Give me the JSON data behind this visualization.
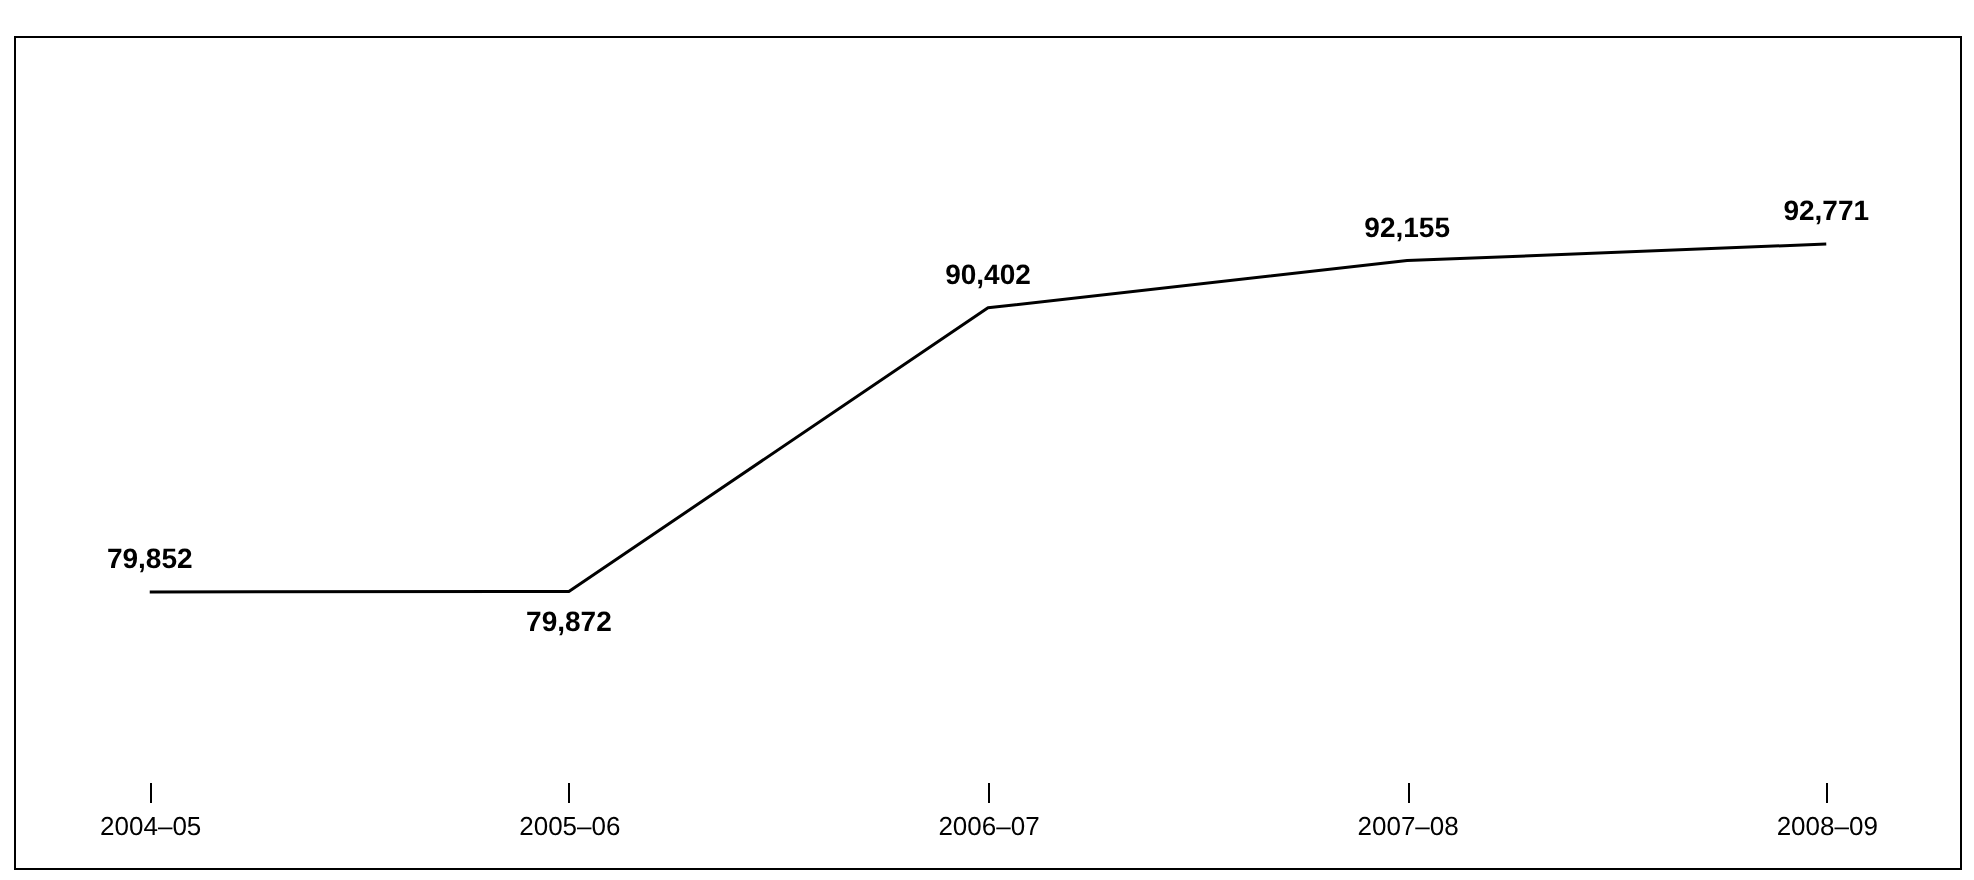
{
  "chart_data": {
    "type": "line",
    "categories": [
      "2004–05",
      "2005–06",
      "2006–07",
      "2007–08",
      "2008–09"
    ],
    "values": [
      79852,
      79872,
      90402,
      92155,
      92771
    ],
    "value_labels": [
      "79,852",
      "79,872",
      "90,402",
      "92,155",
      "92,771"
    ],
    "color": "#000000",
    "grid": false,
    "marker": "none",
    "line_style": "solid"
  }
}
